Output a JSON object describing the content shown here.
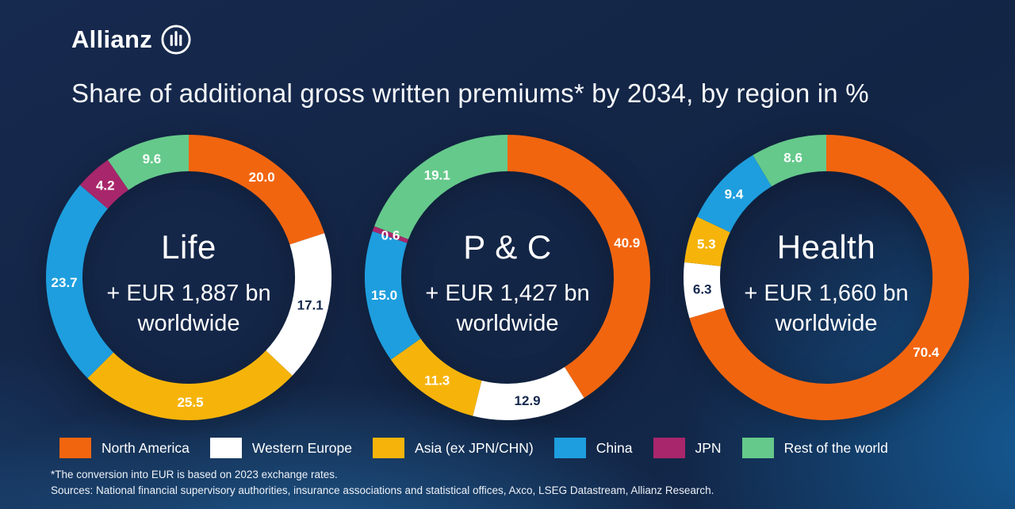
{
  "brand": {
    "logo_text": "Allianz",
    "logo_icon": "allianz-circle-bars-icon"
  },
  "title": "Share of additional gross written premiums* by 2034, by region in %",
  "palette": {
    "North America": "#F2650F",
    "Western Europe": "#FFFFFF",
    "Asia (ex JPN/CHN)": "#F6B40A",
    "China": "#1E9EDE",
    "JPN": "#A8266B",
    "Rest of the world": "#65C98B"
  },
  "colors": {
    "background_navy": "#152A50",
    "background_glow_blue": "#15568C",
    "text_light": "#FFFFFF",
    "label_dark": "#16294E"
  },
  "legend": [
    {
      "label": "North America",
      "color": "#F2650F"
    },
    {
      "label": "Western Europe",
      "color": "#FFFFFF"
    },
    {
      "label": "Asia (ex JPN/CHN)",
      "color": "#F6B40A"
    },
    {
      "label": "China",
      "color": "#1E9EDE"
    },
    {
      "label": "JPN",
      "color": "#A8266B"
    },
    {
      "label": "Rest of the world",
      "color": "#65C98B"
    }
  ],
  "chart_data": [
    {
      "type": "pie",
      "variant": "donut",
      "title": "Life",
      "subtitle": "+ EUR 1,887 bn",
      "subtitle2": "worldwide",
      "unit": "%",
      "categories": [
        "North America",
        "Western Europe",
        "Asia (ex JPN/CHN)",
        "China",
        "JPN",
        "Rest of the world"
      ],
      "values": [
        20.0,
        17.1,
        25.5,
        23.7,
        4.2,
        9.6
      ]
    },
    {
      "type": "pie",
      "variant": "donut",
      "title": "P & C",
      "subtitle": "+ EUR 1,427 bn",
      "subtitle2": "worldwide",
      "unit": "%",
      "categories": [
        "North America",
        "Western Europe",
        "Asia (ex JPN/CHN)",
        "China",
        "JPN",
        "Rest of the world"
      ],
      "values": [
        40.9,
        12.9,
        11.3,
        15.0,
        0.6,
        19.1
      ]
    },
    {
      "type": "pie",
      "variant": "donut",
      "title": "Health",
      "subtitle": "+ EUR 1,660 bn",
      "subtitle2": "worldwide",
      "unit": "%",
      "categories": [
        "North America",
        "Western Europe",
        "Asia (ex JPN/CHN)",
        "China",
        "Rest of the world"
      ],
      "values": [
        70.4,
        6.3,
        5.3,
        9.4,
        8.6
      ]
    }
  ],
  "footnotes": [
    "*The conversion into EUR is based on 2023 exchange rates.",
    "Sources: National financial supervisory authorities, insurance associations and statistical offices, Axco, LSEG Datastream, Allianz Research."
  ]
}
